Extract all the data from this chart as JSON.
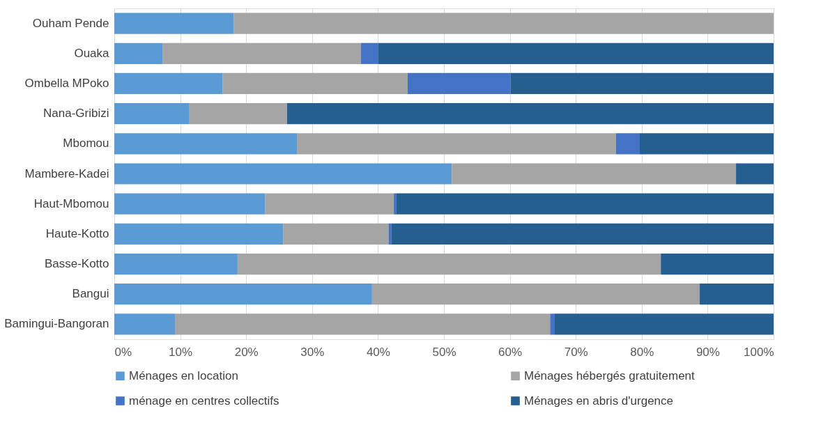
{
  "chart_data": {
    "type": "bar",
    "orientation": "horizontal",
    "stacked": true,
    "categories": [
      "Ouham Pende",
      "Ouaka",
      "Ombella MPoko",
      "Nana-Gribizi",
      "Mbomou",
      "Mambere-Kadei",
      "Haut-Mbomou",
      "Haute-Kotto",
      "Basse-Kotto",
      "Bangui",
      "Bamingui-Bangoran"
    ],
    "series": [
      {
        "name": "Ménages en location",
        "color": "#5b9bd5",
        "values": [
          18.1,
          7.3,
          16.4,
          11.4,
          27.7,
          51.2,
          22.9,
          25.6,
          18.7,
          39.1,
          9.2
        ]
      },
      {
        "name": "Ménages hébergés gratuitement",
        "color": "#a5a5a5",
        "values": [
          81.9,
          30.1,
          28.1,
          14.8,
          48.4,
          43.1,
          19.5,
          16.0,
          64.2,
          49.7,
          56.9
        ]
      },
      {
        "name": "ménage en centres collectifs",
        "color": "#4472c4",
        "values": [
          null,
          2.6,
          15.6,
          null,
          3.6,
          null,
          0.4,
          0.4,
          null,
          null,
          0.7
        ]
      },
      {
        "name": "Ménages en abris d'urgence",
        "color": "#255e91",
        "values": [
          null,
          60.0,
          39.9,
          73.8,
          20.3,
          5.7,
          57.2,
          58.0,
          17.1,
          11.2,
          33.2
        ]
      }
    ],
    "xlim": [
      0,
      100
    ],
    "xticks": [
      {
        "value": 0,
        "label": "0%"
      },
      {
        "value": 10,
        "label": "10%"
      },
      {
        "value": 20,
        "label": "20%"
      },
      {
        "value": 30,
        "label": "30%"
      },
      {
        "value": 40,
        "label": "40%"
      },
      {
        "value": 50,
        "label": "50%"
      },
      {
        "value": 60,
        "label": "60%"
      },
      {
        "value": 70,
        "label": "70%"
      },
      {
        "value": 80,
        "label": "80%"
      },
      {
        "value": 90,
        "label": "90%"
      },
      {
        "value": 100,
        "label": "100%"
      }
    ],
    "grid": "x",
    "legend": "bottom"
  }
}
